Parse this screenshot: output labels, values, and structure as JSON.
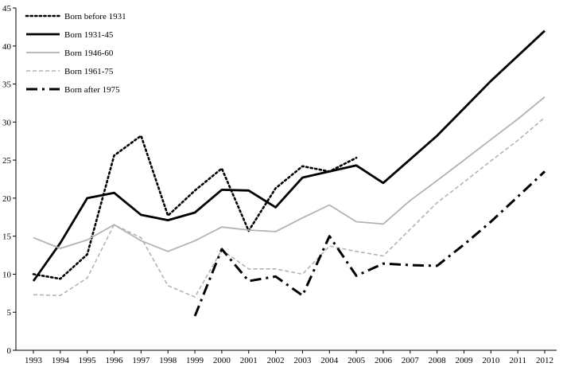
{
  "chart_data": {
    "type": "line",
    "title": "",
    "xlabel": "",
    "ylabel": "",
    "x": [
      "1993",
      "1994",
      "1995",
      "1996",
      "1997",
      "1998",
      "1999",
      "2000",
      "2001",
      "2002",
      "2003",
      "2004",
      "2005",
      "2006",
      "2007",
      "2008",
      "2009",
      "2010",
      "2011",
      "2012"
    ],
    "ylim": [
      0,
      45
    ],
    "yticks": [
      0,
      5,
      10,
      15,
      20,
      25,
      30,
      35,
      40,
      45
    ],
    "grid": false,
    "legend_position": "top-left",
    "series": [
      {
        "name": "Born before 1931",
        "style": "dotted",
        "color": "#000000",
        "values": [
          10.0,
          9.4,
          12.6,
          25.6,
          28.2,
          17.7,
          21.0,
          23.9,
          15.7,
          21.3,
          24.2,
          23.5,
          25.3,
          null,
          null,
          null,
          null,
          null,
          null,
          null
        ]
      },
      {
        "name": "Born 1931-45",
        "style": "solid-thick",
        "color": "#000000",
        "values": [
          9.1,
          14.1,
          20.0,
          20.7,
          17.8,
          17.1,
          18.1,
          21.1,
          21.0,
          18.8,
          22.7,
          23.5,
          24.3,
          22.0,
          25.1,
          28.2,
          31.8,
          35.4,
          38.7,
          42.0
        ]
      },
      {
        "name": "Born 1946-60",
        "style": "solid-gray",
        "color": "#b3b3b3",
        "values": [
          14.8,
          13.4,
          14.5,
          16.5,
          14.4,
          13.0,
          14.4,
          16.2,
          15.8,
          15.6,
          17.4,
          19.1,
          16.9,
          16.6,
          19.7,
          22.3,
          25.0,
          27.7,
          30.4,
          33.3
        ]
      },
      {
        "name": "Born 1961-75",
        "style": "dashed-gray",
        "color": "#b3b3b3",
        "values": [
          7.3,
          7.2,
          9.5,
          16.5,
          14.8,
          8.5,
          7.0,
          13.2,
          10.7,
          10.7,
          10.0,
          13.7,
          13.0,
          12.4,
          15.9,
          19.4,
          22.1,
          24.9,
          27.6,
          30.6
        ]
      },
      {
        "name": "Born after 1975",
        "style": "dashdot-thick",
        "color": "#000000",
        "values": [
          null,
          null,
          null,
          null,
          null,
          null,
          4.5,
          13.3,
          9.1,
          9.7,
          7.2,
          15.0,
          9.8,
          11.4,
          11.2,
          11.1,
          13.9,
          16.9,
          20.2,
          23.5
        ]
      }
    ]
  }
}
